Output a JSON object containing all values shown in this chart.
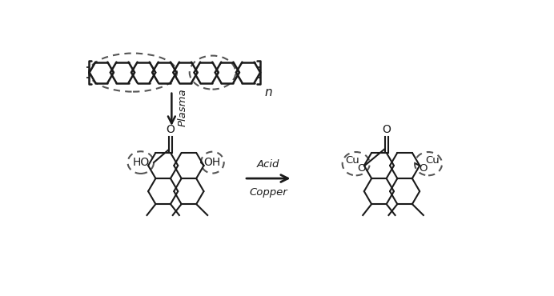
{
  "bg_color": "#ffffff",
  "line_color": "#1a1a1a",
  "dashed_color": "#555555",
  "plasma_label": "Plasma",
  "acid_label": "Acid",
  "copper_label": "Copper",
  "n_label": "n",
  "ho_label": "HO",
  "oh_label": "OH",
  "o_label": "O",
  "cu_label": "Cu",
  "o_cu_label": "O"
}
